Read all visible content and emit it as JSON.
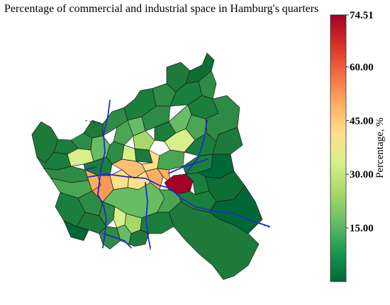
{
  "title": "Percentage of commercial and industrial space in Hamburg's quarters",
  "colorbar": {
    "label": "Percentage, %",
    "max_label": "74.51",
    "min": 0,
    "max": 74.51,
    "ticks": [
      {
        "value": 74.51,
        "label": "74.51"
      },
      {
        "value": 60,
        "label": "60.00"
      },
      {
        "value": 45,
        "label": "45.00"
      },
      {
        "value": 30,
        "label": "30.00"
      },
      {
        "value": 15,
        "label": "15.00"
      }
    ],
    "colormap": "RdYlGn_r",
    "colors": [
      "#006837",
      "#1a9850",
      "#66bd63",
      "#a6d96a",
      "#d9ef8b",
      "#fee08b",
      "#fdae61",
      "#f46d43",
      "#d73027",
      "#a50026"
    ]
  },
  "map": {
    "city": "Hamburg",
    "river_color": "#1f2ccc",
    "highlight_value": 74.51
  }
}
